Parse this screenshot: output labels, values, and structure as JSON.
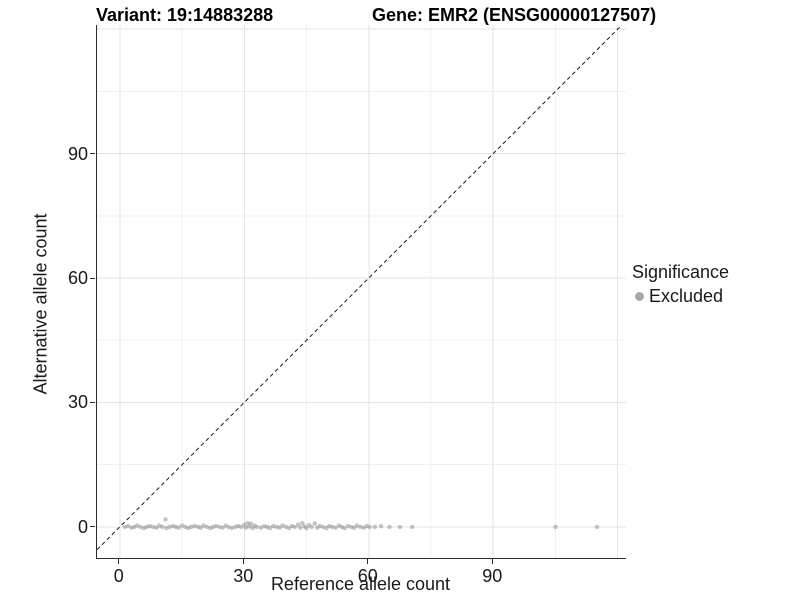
{
  "chart_data": {
    "type": "scatter",
    "titles": {
      "variant": "Variant: 19:14883288",
      "gene": "Gene: EMR2 (ENSG00000127507)"
    },
    "xlabel": "Reference allele count",
    "ylabel": "Alternative allele count",
    "xlim": [
      -5.5,
      122
    ],
    "ylim": [
      -7.5,
      121
    ],
    "xticks": [
      0,
      30,
      60,
      90
    ],
    "yticks": [
      0,
      30,
      60,
      90
    ],
    "grid": {
      "major_every": 30,
      "minor_every": 15,
      "major_color": "#e3e3e3",
      "minor_color": "#f0f0f0"
    },
    "identity_line": {
      "equation": "y = x",
      "style": "dashed",
      "color": "#1a1a1a"
    },
    "legend": {
      "title": "Significance",
      "position": "right",
      "items": [
        {
          "label": "Excluded",
          "color": "#a8a8a8"
        }
      ]
    },
    "series": [
      {
        "name": "Excluded",
        "color": "#8a8a8a",
        "opacity": 0.5,
        "marker_px": 4.4,
        "points": [
          [
            1.2,
            0
          ],
          [
            2,
            0.2
          ],
          [
            2.8,
            -0.2
          ],
          [
            3.5,
            0
          ],
          [
            4.2,
            0.3
          ],
          [
            5,
            0
          ],
          [
            5.8,
            -0.3
          ],
          [
            6.5,
            0
          ],
          [
            7.2,
            0.2
          ],
          [
            8,
            0
          ],
          [
            8.8,
            -0.2
          ],
          [
            9.5,
            0.3
          ],
          [
            10.2,
            0
          ],
          [
            11,
            1.8
          ],
          [
            11.2,
            -0.3
          ],
          [
            12,
            0
          ],
          [
            12.8,
            0.2
          ],
          [
            13.5,
            0
          ],
          [
            14.2,
            -0.2
          ],
          [
            15,
            0.3
          ],
          [
            15.8,
            0
          ],
          [
            16.5,
            -0.3
          ],
          [
            17.2,
            0
          ],
          [
            18,
            0.2
          ],
          [
            18.8,
            0
          ],
          [
            19.5,
            -0.2
          ],
          [
            20.2,
            0.3
          ],
          [
            21,
            0
          ],
          [
            21.8,
            -0.3
          ],
          [
            22.5,
            0
          ],
          [
            23.2,
            0.2
          ],
          [
            24,
            0
          ],
          [
            24.8,
            -0.2
          ],
          [
            25.5,
            0.3
          ],
          [
            26.2,
            0
          ],
          [
            27,
            -0.3
          ],
          [
            27.8,
            0
          ],
          [
            28.5,
            0.2
          ],
          [
            29.2,
            0
          ],
          [
            30,
            0.5
          ],
          [
            30.4,
            -0.2
          ],
          [
            30.8,
            0.9
          ],
          [
            31.2,
            0.1
          ],
          [
            31.6,
            0.8
          ],
          [
            32,
            -0.3
          ],
          [
            32.5,
            0.3
          ],
          [
            33,
            0
          ],
          [
            34,
            -0.2
          ],
          [
            34.8,
            0.2
          ],
          [
            35.5,
            0
          ],
          [
            36.2,
            -0.3
          ],
          [
            37,
            0.2
          ],
          [
            37.8,
            0
          ],
          [
            38.5,
            -0.2
          ],
          [
            39.2,
            0.3
          ],
          [
            40,
            0
          ],
          [
            40.8,
            -0.3
          ],
          [
            41.5,
            0.2
          ],
          [
            42.2,
            0
          ],
          [
            43,
            0.6
          ],
          [
            43.5,
            -0.2
          ],
          [
            44,
            0.9
          ],
          [
            44.5,
            0.1
          ],
          [
            45,
            -0.3
          ],
          [
            45.6,
            0.4
          ],
          [
            46.2,
            0
          ],
          [
            47,
            0.8
          ],
          [
            47.6,
            -0.2
          ],
          [
            48.2,
            0.2
          ],
          [
            49,
            0
          ],
          [
            49.8,
            -0.3
          ],
          [
            50.5,
            0.2
          ],
          [
            51.2,
            0
          ],
          [
            52,
            -0.2
          ],
          [
            52.8,
            0.3
          ],
          [
            53.5,
            0
          ],
          [
            54.2,
            -0.3
          ],
          [
            55,
            0.2
          ],
          [
            55.8,
            0
          ],
          [
            56.5,
            -0.2
          ],
          [
            57.2,
            0.3
          ],
          [
            58,
            0
          ],
          [
            58.8,
            -0.2
          ],
          [
            59.5,
            0.2
          ],
          [
            60.2,
            0
          ],
          [
            61.5,
            0
          ],
          [
            63,
            0.2
          ],
          [
            65,
            0
          ],
          [
            67.5,
            0
          ],
          [
            70.5,
            0
          ],
          [
            105,
            0
          ],
          [
            115,
            0
          ]
        ]
      }
    ]
  }
}
